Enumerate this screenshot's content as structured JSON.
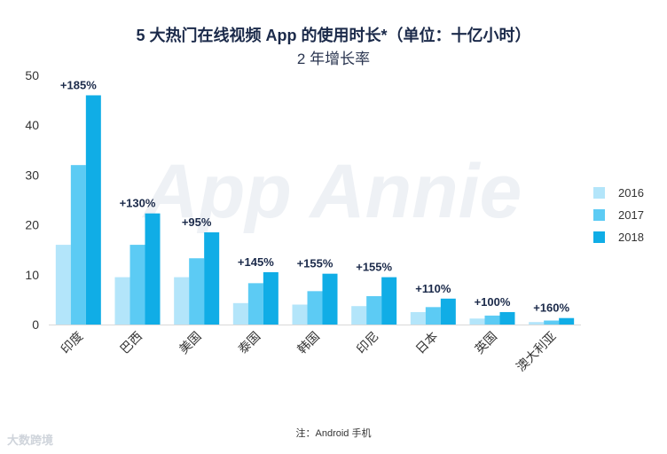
{
  "chart_data": {
    "type": "bar",
    "title": "5 大热门在线视频 App 的使用时长*（单位：十亿小时）",
    "subtitle": "2 年增长率",
    "categories": [
      "印度",
      "巴西",
      "美国",
      "泰国",
      "韩国",
      "印尼",
      "日本",
      "英国",
      "澳大利亚"
    ],
    "series": [
      {
        "name": "2016",
        "color": "#b3e5fa",
        "values": [
          16,
          9.5,
          9.5,
          4.3,
          4.0,
          3.7,
          2.5,
          1.2,
          0.5
        ]
      },
      {
        "name": "2017",
        "color": "#5ccbf4",
        "values": [
          32,
          16,
          13.3,
          8.3,
          6.7,
          5.7,
          3.5,
          1.8,
          0.8
        ]
      },
      {
        "name": "2018",
        "color": "#10ade6",
        "values": [
          46,
          22.3,
          18.5,
          10.5,
          10.2,
          9.5,
          5.2,
          2.5,
          1.3
        ]
      }
    ],
    "growth_labels": [
      "+185%",
      "+130%",
      "+95%",
      "+145%",
      "+155%",
      "+155%",
      "+110%",
      "+100%",
      "+160%"
    ],
    "ylim": [
      0,
      50
    ],
    "yticks": [
      0,
      10,
      20,
      30,
      40,
      50
    ],
    "grid": false,
    "legend": "right"
  },
  "watermark": "App Annie",
  "footnote": "注：Android 手机",
  "brand": "大数跨境"
}
